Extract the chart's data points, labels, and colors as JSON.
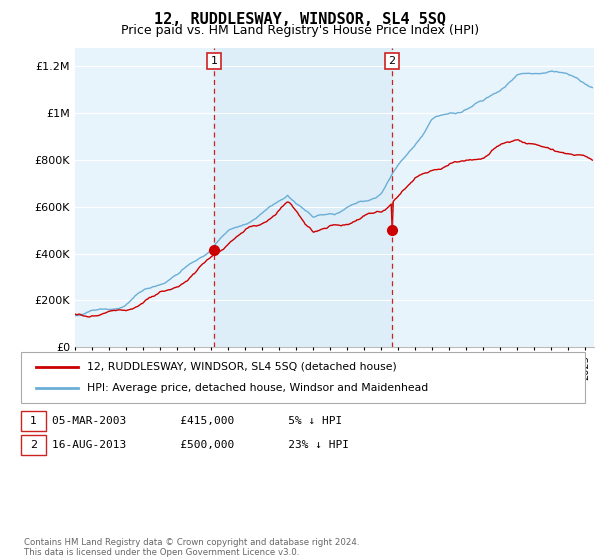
{
  "title": "12, RUDDLESWAY, WINDSOR, SL4 5SQ",
  "subtitle": "Price paid vs. HM Land Registry's House Price Index (HPI)",
  "ylabel_ticks": [
    "£0",
    "£200K",
    "£400K",
    "£600K",
    "£800K",
    "£1M",
    "£1.2M"
  ],
  "ytick_vals": [
    0,
    200000,
    400000,
    600000,
    800000,
    1000000,
    1200000
  ],
  "ylim": [
    0,
    1280000
  ],
  "xlim_start": 1995.0,
  "xlim_end": 2025.5,
  "legend_line1": "12, RUDDLESWAY, WINDSOR, SL4 5SQ (detached house)",
  "legend_line2": "HPI: Average price, detached house, Windsor and Maidenhead",
  "annotation1_text": "05-MAR-2003        £415,000        5% ↓ HPI",
  "annotation2_text": "16-AUG-2013        £500,000        23% ↓ HPI",
  "footer": "Contains HM Land Registry data © Crown copyright and database right 2024.\nThis data is licensed under the Open Government Licence v3.0.",
  "sale1_year": 2003.17,
  "sale1_price": 415000,
  "sale2_year": 2013.62,
  "sale2_price": 500000,
  "hpi_color": "#6baed6",
  "hpi_shade_color": "#ddeef9",
  "price_color": "#cc0000",
  "plot_bg": "#e8f4fc",
  "grid_color": "#ffffff",
  "vline_color": "#cc2222",
  "marker_border_color": "#cc2222",
  "title_fontsize": 11,
  "subtitle_fontsize": 9
}
